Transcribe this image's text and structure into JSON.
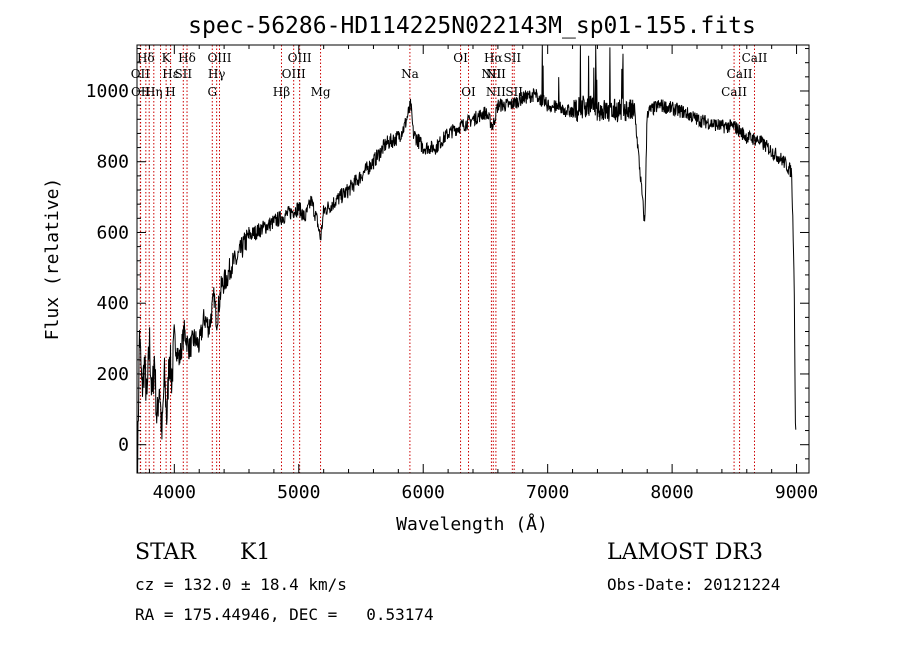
{
  "chart_data": {
    "type": "line",
    "title": "spec-56286-HD114225N022143M_sp01-155.fits",
    "xlabel": "Wavelength (Å)",
    "ylabel": "Flux (relative)",
    "xlim": [
      3700,
      9100
    ],
    "ylim": [
      -80,
      1130
    ],
    "x_ticks": [
      4000,
      5000,
      6000,
      7000,
      8000,
      9000
    ],
    "y_ticks": [
      0,
      200,
      400,
      600,
      800,
      1000
    ],
    "line_color": "#000000",
    "marker_color": "#cc0000",
    "spectrum_anchors": [
      [
        3705,
        -60
      ],
      [
        3720,
        320
      ],
      [
        3740,
        150
      ],
      [
        3760,
        230
      ],
      [
        3780,
        120
      ],
      [
        3800,
        300
      ],
      [
        3820,
        130
      ],
      [
        3840,
        250
      ],
      [
        3860,
        60
      ],
      [
        3880,
        180
      ],
      [
        3900,
        20
      ],
      [
        3920,
        200
      ],
      [
        3940,
        70
      ],
      [
        3960,
        260
      ],
      [
        3980,
        180
      ],
      [
        4000,
        300
      ],
      [
        4040,
        240
      ],
      [
        4080,
        320
      ],
      [
        4120,
        270
      ],
      [
        4160,
        300
      ],
      [
        4200,
        280
      ],
      [
        4240,
        360
      ],
      [
        4280,
        330
      ],
      [
        4320,
        420
      ],
      [
        4340,
        350
      ],
      [
        4380,
        450
      ],
      [
        4420,
        470
      ],
      [
        4460,
        510
      ],
      [
        4500,
        520
      ],
      [
        4550,
        560
      ],
      [
        4600,
        590
      ],
      [
        4650,
        600
      ],
      [
        4700,
        610
      ],
      [
        4750,
        620
      ],
      [
        4800,
        630
      ],
      [
        4850,
        640
      ],
      [
        4900,
        650
      ],
      [
        4950,
        660
      ],
      [
        5000,
        670
      ],
      [
        5050,
        640
      ],
      [
        5100,
        690
      ],
      [
        5150,
        630
      ],
      [
        5175,
        580
      ],
      [
        5200,
        660
      ],
      [
        5300,
        690
      ],
      [
        5400,
        720
      ],
      [
        5500,
        760
      ],
      [
        5600,
        800
      ],
      [
        5700,
        850
      ],
      [
        5800,
        870
      ],
      [
        5850,
        900
      ],
      [
        5900,
        960
      ],
      [
        5920,
        880
      ],
      [
        5960,
        860
      ],
      [
        6000,
        840
      ],
      [
        6100,
        840
      ],
      [
        6200,
        880
      ],
      [
        6300,
        900
      ],
      [
        6400,
        920
      ],
      [
        6500,
        940
      ],
      [
        6560,
        900
      ],
      [
        6600,
        960
      ],
      [
        6700,
        960
      ],
      [
        6800,
        980
      ],
      [
        6900,
        990
      ],
      [
        7000,
        960
      ],
      [
        7100,
        950
      ],
      [
        7200,
        940
      ],
      [
        7300,
        960
      ],
      [
        7400,
        950
      ],
      [
        7500,
        940
      ],
      [
        7600,
        950
      ],
      [
        7700,
        940
      ],
      [
        7780,
        620
      ],
      [
        7800,
        940
      ],
      [
        7900,
        960
      ],
      [
        8000,
        950
      ],
      [
        8100,
        940
      ],
      [
        8200,
        920
      ],
      [
        8300,
        910
      ],
      [
        8400,
        900
      ],
      [
        8500,
        900
      ],
      [
        8600,
        870
      ],
      [
        8700,
        860
      ],
      [
        8800,
        830
      ],
      [
        8900,
        800
      ],
      [
        8960,
        770
      ],
      [
        8980,
        500
      ],
      [
        8990,
        80
      ],
      [
        8995,
        40
      ]
    ],
    "annotations": [
      {
        "label": "Hδ",
        "x": 3771,
        "row": 0
      },
      {
        "label": "K",
        "x": 3934,
        "row": 0
      },
      {
        "label": "Hδ",
        "x": 4102,
        "row": 0
      },
      {
        "label": "OIII",
        "x": 4363,
        "row": 0
      },
      {
        "label": "OIII",
        "x": 5007,
        "row": 0
      },
      {
        "label": "OI",
        "x": 6300,
        "row": 0
      },
      {
        "label": "Hα",
        "x": 6563,
        "row": 0
      },
      {
        "label": "SII",
        "x": 6716,
        "row": 0
      },
      {
        "label": "CaII",
        "x": 8662,
        "row": 0
      },
      {
        "label": "OII",
        "x": 3727,
        "row": 1
      },
      {
        "label": "Hε",
        "x": 3970,
        "row": 1
      },
      {
        "label": "SII",
        "x": 4072,
        "row": 1
      },
      {
        "label": "Hγ",
        "x": 4340,
        "row": 1
      },
      {
        "label": "OIII",
        "x": 4959,
        "row": 1
      },
      {
        "label": "Na",
        "x": 5893,
        "row": 1
      },
      {
        "label": "NII",
        "x": 6548,
        "row": 1
      },
      {
        "label": "NII",
        "x": 6584,
        "row": 1
      },
      {
        "label": "CaII",
        "x": 8542,
        "row": 1
      },
      {
        "label": "OII",
        "x": 3729,
        "row": 2
      },
      {
        "label": "Hη",
        "x": 3835,
        "row": 2
      },
      {
        "label": "H",
        "x": 3969,
        "row": 2
      },
      {
        "label": "G",
        "x": 4305,
        "row": 2
      },
      {
        "label": "Hβ",
        "x": 4861,
        "row": 2
      },
      {
        "label": "Mg",
        "x": 5175,
        "row": 2
      },
      {
        "label": "OI",
        "x": 6364,
        "row": 2
      },
      {
        "label": "NII",
        "x": 6584,
        "row": 2
      },
      {
        "label": "SII",
        "x": 6731,
        "row": 2
      },
      {
        "label": "CaII",
        "x": 8498,
        "row": 2
      }
    ],
    "marker_lines": [
      3727,
      3729,
      3771,
      3798,
      3835,
      3889,
      3934,
      3969,
      3970,
      4072,
      4102,
      4305,
      4340,
      4363,
      4861,
      4959,
      5007,
      5175,
      5893,
      6300,
      6364,
      6548,
      6563,
      6584,
      6716,
      6731,
      8498,
      8542,
      8662
    ]
  },
  "info": {
    "object_class": "STAR",
    "subclass": "K1",
    "survey": "LAMOST DR3",
    "redshift": "cz = 132.0 ± 18.4 km/s",
    "obs_date": "Obs-Date: 20121224",
    "coords": "RA = 175.44946, DEC =   0.53174"
  }
}
